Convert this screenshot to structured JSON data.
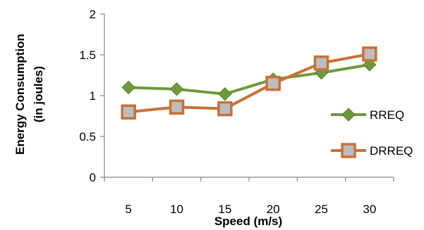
{
  "chart_data": {
    "type": "line",
    "xlabel": "Speed (m/s)",
    "ylabel_lines": [
      "Energy Consumption",
      "(in joules)"
    ],
    "categories": [
      "5",
      "10",
      "15",
      "20",
      "25",
      "30"
    ],
    "ylim": [
      0,
      2
    ],
    "yticks": [
      "0",
      "0.5",
      "1",
      "1.5",
      "2"
    ],
    "grid": false,
    "legend_position": "right",
    "series": [
      {
        "name": "RREQ",
        "color": "#6e9a3b",
        "marker": "diamond",
        "values": [
          1.1,
          1.08,
          1.02,
          1.2,
          1.28,
          1.38
        ]
      },
      {
        "name": "DRREQ",
        "color": "#c87137",
        "marker": "square",
        "values": [
          0.8,
          0.86,
          0.84,
          1.15,
          1.4,
          1.51
        ]
      }
    ]
  }
}
